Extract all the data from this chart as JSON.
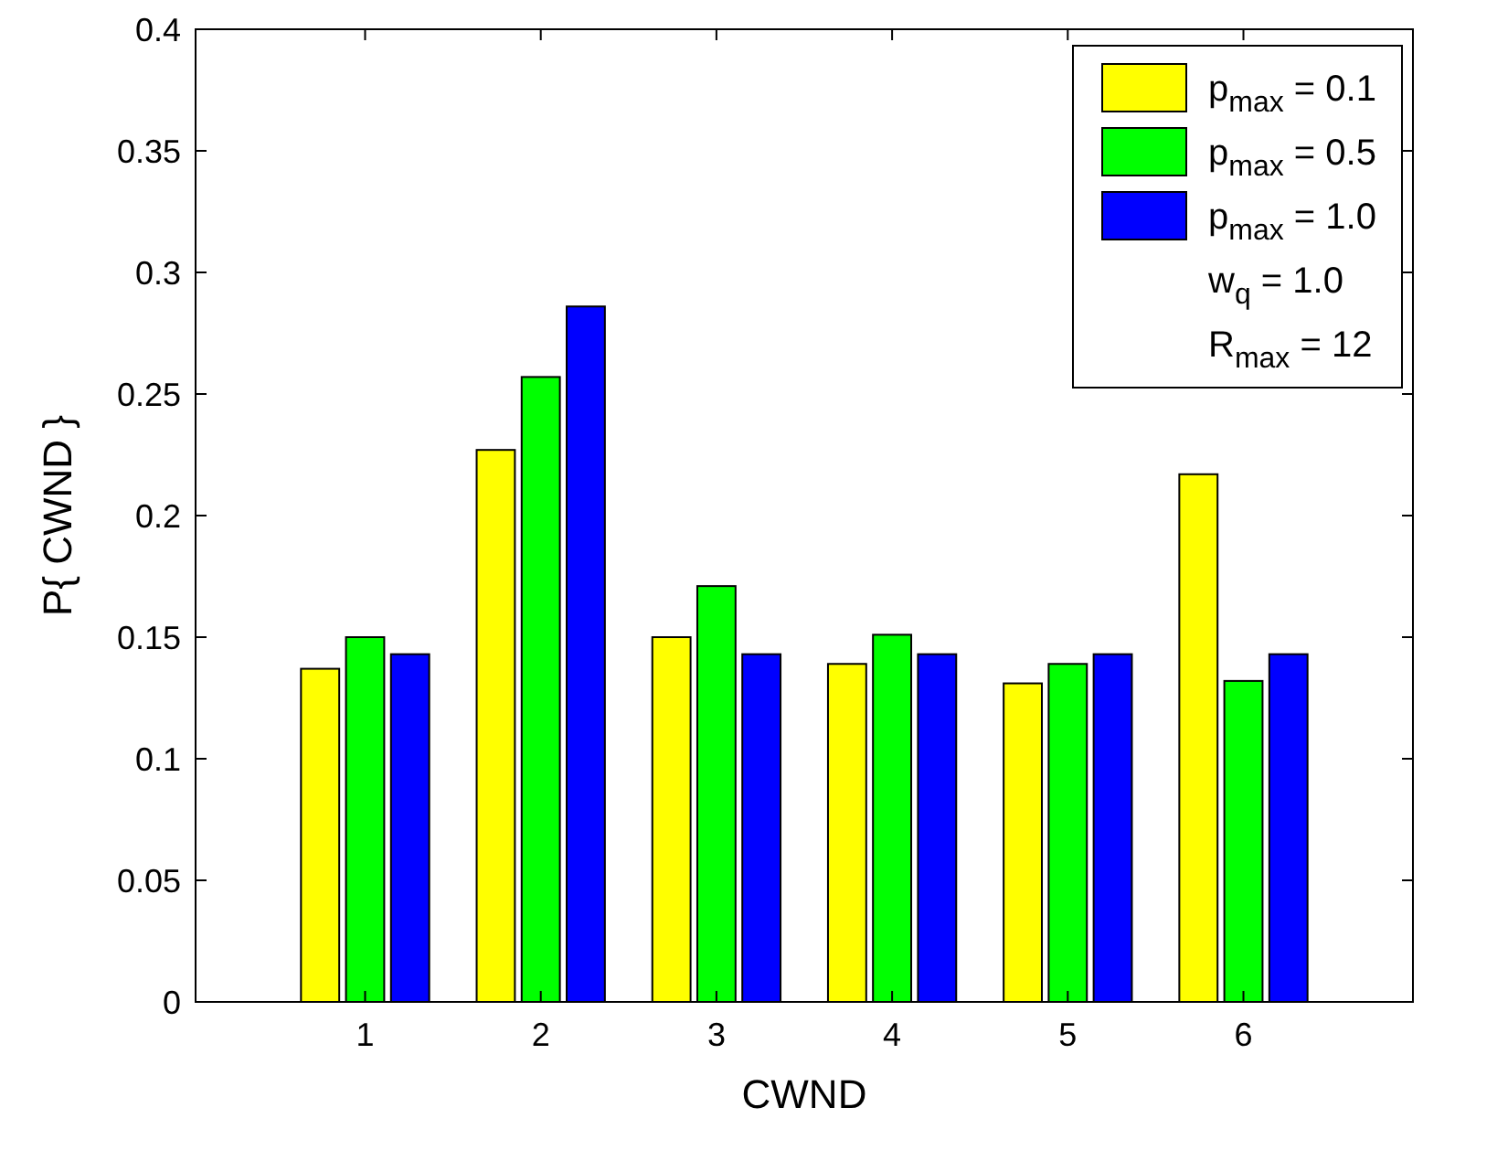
{
  "chart_data": {
    "type": "bar",
    "xlabel": "CWND",
    "ylabel": "P{ CWND }",
    "categories": [
      "1",
      "2",
      "3",
      "4",
      "5",
      "6"
    ],
    "series": [
      {
        "name": "p$_{max}$ = 0.1",
        "color": "#ffff00",
        "values": [
          0.137,
          0.227,
          0.15,
          0.139,
          0.131,
          0.217
        ]
      },
      {
        "name": "p$_{max}$ = 0.5",
        "color": "#00ff00",
        "values": [
          0.15,
          0.257,
          0.171,
          0.151,
          0.139,
          0.132
        ]
      },
      {
        "name": "p$_{max}$ = 1.0",
        "color": "#0000ff",
        "values": [
          0.143,
          0.286,
          0.143,
          0.143,
          0.143,
          0.143
        ]
      }
    ],
    "annotations": [
      "w$_{q}$ = 1.0",
      "R$_{max}$ = 12"
    ],
    "ylim": [
      0,
      0.4
    ],
    "yticks": [
      0,
      0.05,
      0.1,
      0.15,
      0.2,
      0.25,
      0.3,
      0.35,
      0.4
    ],
    "legend": "top right",
    "grid": false
  }
}
